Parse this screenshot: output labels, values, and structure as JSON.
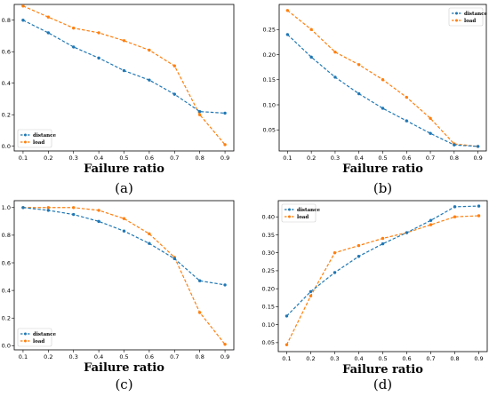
{
  "chart_data": [
    {
      "type": "line",
      "panel_label": "(a)",
      "xlabel": "Failure ratio",
      "x": [
        0.1,
        0.2,
        0.3,
        0.4,
        0.5,
        0.6,
        0.7,
        0.8,
        0.9
      ],
      "yticks": [
        0.0,
        0.2,
        0.4,
        0.6,
        0.8
      ],
      "ylim": [
        -0.03,
        0.9
      ],
      "legend_position": "bottom-left",
      "series": [
        {
          "name": "distance",
          "color": "#1f77b4",
          "values": [
            0.8,
            0.72,
            0.63,
            0.56,
            0.48,
            0.42,
            0.33,
            0.22,
            0.21
          ]
        },
        {
          "name": "load",
          "color": "#ff7f0e",
          "values": [
            0.89,
            0.82,
            0.75,
            0.72,
            0.67,
            0.61,
            0.51,
            0.2,
            0.01
          ]
        }
      ]
    },
    {
      "type": "line",
      "panel_label": "(b)",
      "xlabel": "Failure ratio",
      "x": [
        0.1,
        0.2,
        0.3,
        0.4,
        0.5,
        0.6,
        0.7,
        0.8,
        0.9
      ],
      "yticks": [
        0.05,
        0.1,
        0.15,
        0.2,
        0.25
      ],
      "ylim": [
        0.008,
        0.3
      ],
      "legend_position": "top-right",
      "series": [
        {
          "name": "distance",
          "color": "#1f77b4",
          "values": [
            0.24,
            0.195,
            0.155,
            0.122,
            0.093,
            0.068,
            0.043,
            0.02,
            0.017
          ]
        },
        {
          "name": "load",
          "color": "#ff7f0e",
          "values": [
            0.288,
            0.25,
            0.205,
            0.18,
            0.15,
            0.115,
            0.073,
            0.022,
            0.017
          ]
        }
      ]
    },
    {
      "type": "line",
      "panel_label": "(c)",
      "xlabel": "Failure ratio",
      "x": [
        0.1,
        0.2,
        0.3,
        0.4,
        0.5,
        0.6,
        0.7,
        0.8,
        0.9
      ],
      "yticks": [
        0.0,
        0.2,
        0.4,
        0.6,
        0.8,
        1.0
      ],
      "ylim": [
        -0.03,
        1.05
      ],
      "legend_position": "bottom-left",
      "series": [
        {
          "name": "distance",
          "color": "#1f77b4",
          "values": [
            1.0,
            0.98,
            0.95,
            0.9,
            0.83,
            0.74,
            0.63,
            0.47,
            0.44
          ]
        },
        {
          "name": "load",
          "color": "#ff7f0e",
          "values": [
            1.0,
            1.0,
            1.0,
            0.98,
            0.92,
            0.81,
            0.64,
            0.24,
            0.01
          ]
        }
      ]
    },
    {
      "type": "line",
      "panel_label": "(d)",
      "xlabel": "Failure ratio",
      "x": [
        0.1,
        0.2,
        0.3,
        0.4,
        0.5,
        0.6,
        0.7,
        0.8,
        0.9
      ],
      "yticks": [
        0.05,
        0.1,
        0.15,
        0.2,
        0.25,
        0.3,
        0.35,
        0.4
      ],
      "ylim": [
        0.025,
        0.445
      ],
      "legend_position": "top-left",
      "series": [
        {
          "name": "distance",
          "color": "#1f77b4",
          "values": [
            0.124,
            0.192,
            0.245,
            0.29,
            0.325,
            0.356,
            0.39,
            0.428,
            0.43
          ]
        },
        {
          "name": "load",
          "color": "#ff7f0e",
          "values": [
            0.044,
            0.18,
            0.3,
            0.32,
            0.34,
            0.356,
            0.378,
            0.4,
            0.403
          ]
        }
      ]
    }
  ]
}
